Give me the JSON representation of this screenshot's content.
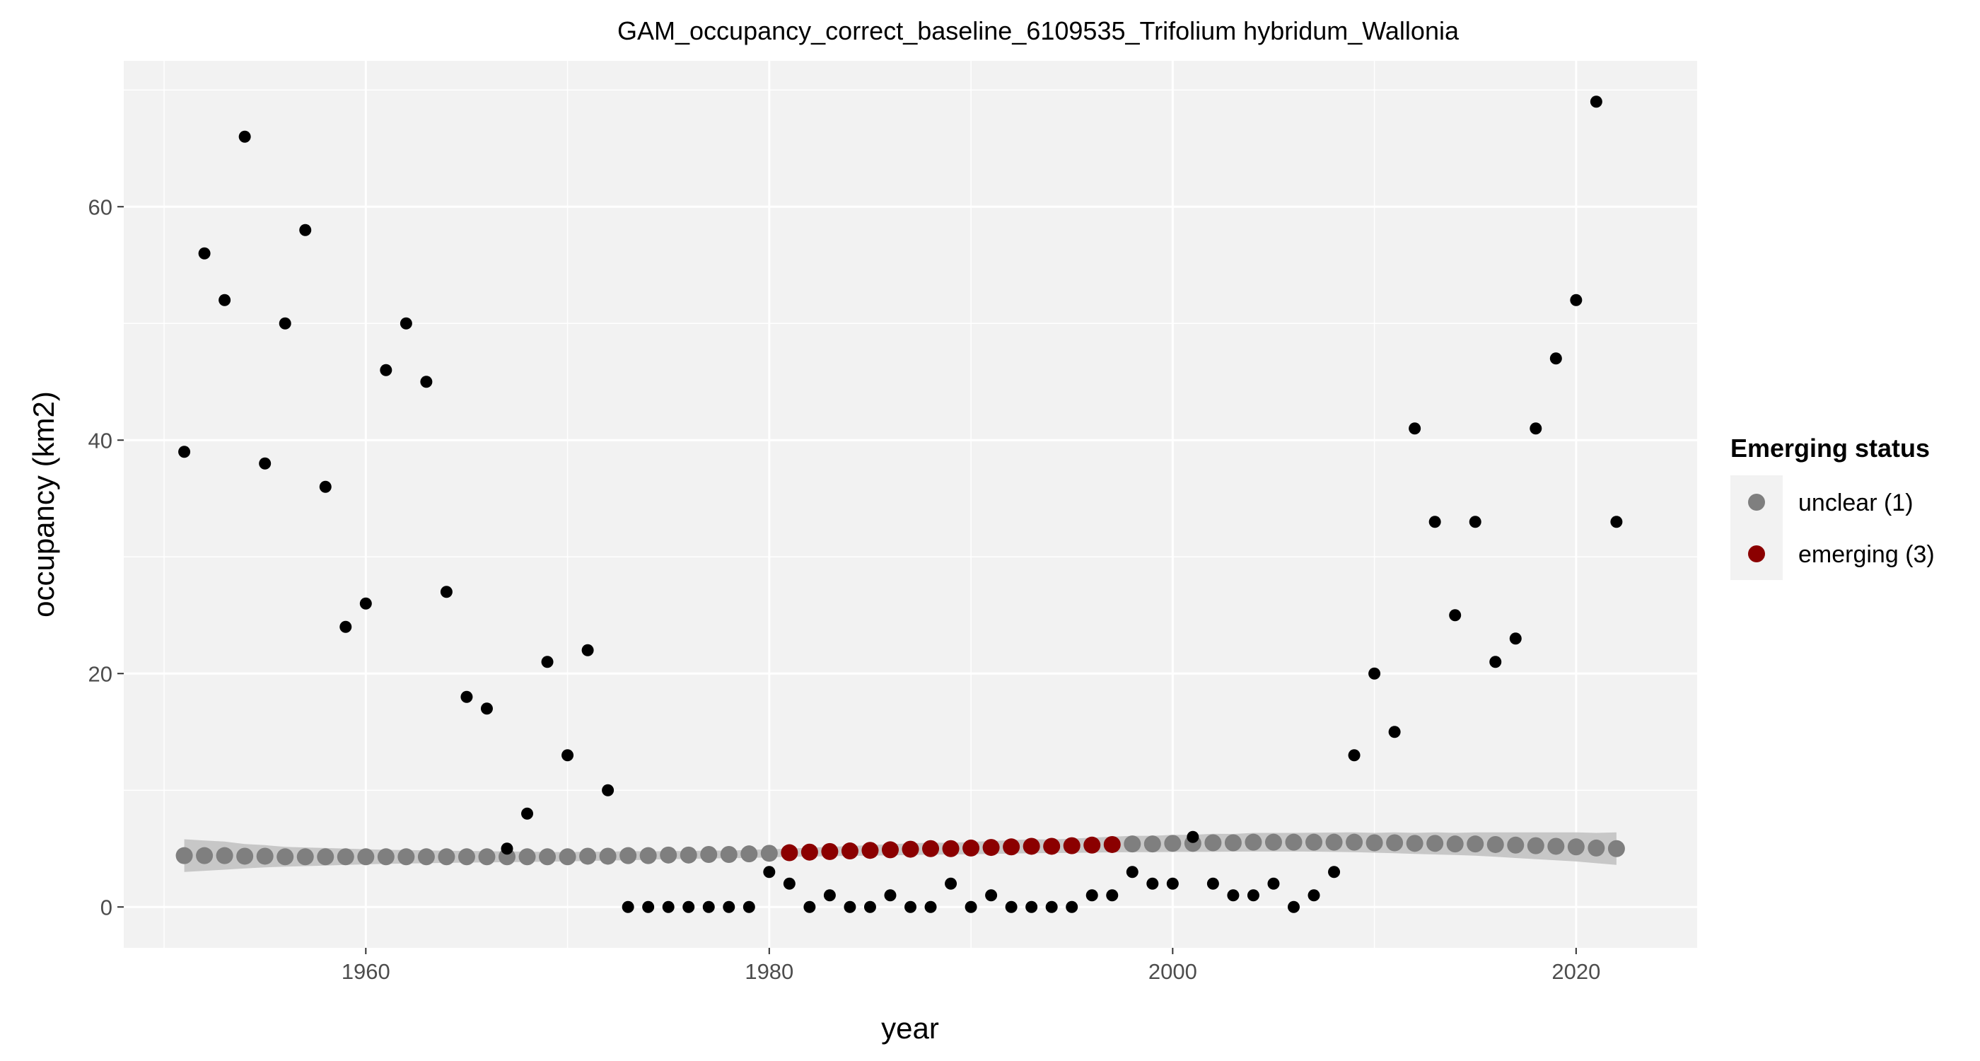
{
  "chart_data": {
    "type": "scatter",
    "title": "GAM_occupancy_correct_baseline_6109535_Trifolium hybridum_Wallonia",
    "xlabel": "year",
    "ylabel": "occupancy (km2)",
    "xlim": [
      1948,
      2026
    ],
    "ylim": [
      -3.5,
      72.5
    ],
    "xticks": [
      1960,
      1980,
      2000,
      2020
    ],
    "yticks": [
      0,
      20,
      40,
      60
    ],
    "grid": true,
    "legend_title": "Emerging status",
    "legend_position": "right",
    "series": [
      {
        "kind": "observed",
        "color": "#000000",
        "x": [
          1951,
          1952,
          1953,
          1954,
          1955,
          1956,
          1957,
          1958,
          1959,
          1960,
          1961,
          1962,
          1963,
          1964,
          1965,
          1966,
          1967,
          1968,
          1969,
          1970,
          1971,
          1972,
          1973,
          1974,
          1975,
          1976,
          1977,
          1978,
          1979,
          1980,
          1981,
          1982,
          1983,
          1984,
          1985,
          1986,
          1987,
          1988,
          1989,
          1990,
          1991,
          1992,
          1993,
          1994,
          1995,
          1996,
          1997,
          1998,
          1999,
          2000,
          2001,
          2002,
          2003,
          2004,
          2005,
          2006,
          2007,
          2008,
          2009,
          2010,
          2011,
          2012,
          2013,
          2014,
          2015,
          2016,
          2017,
          2018,
          2019,
          2020,
          2021,
          2022
        ],
        "y": [
          39,
          56,
          52,
          66,
          38,
          50,
          58,
          36,
          24,
          26,
          46,
          50,
          45,
          27,
          18,
          17,
          5,
          8,
          21,
          13,
          22,
          10,
          0,
          0,
          0,
          0,
          0,
          0,
          0,
          3,
          2,
          0,
          1,
          0,
          0,
          1,
          0,
          0,
          2,
          0,
          1,
          0,
          0,
          0,
          0,
          1,
          1,
          3,
          2,
          2,
          6,
          2,
          1,
          1,
          2,
          0,
          1,
          3,
          13,
          20,
          15,
          41,
          33,
          25,
          33,
          21,
          23,
          41,
          47,
          52,
          69,
          33
        ]
      },
      {
        "kind": "gam_fit",
        "x": [
          1951,
          1952,
          1953,
          1954,
          1955,
          1956,
          1957,
          1958,
          1959,
          1960,
          1961,
          1962,
          1963,
          1964,
          1965,
          1966,
          1967,
          1968,
          1969,
          1970,
          1971,
          1972,
          1973,
          1974,
          1975,
          1976,
          1977,
          1978,
          1979,
          1980,
          1981,
          1982,
          1983,
          1984,
          1985,
          1986,
          1987,
          1988,
          1989,
          1990,
          1991,
          1992,
          1993,
          1994,
          1995,
          1996,
          1997,
          1998,
          1999,
          2000,
          2001,
          2002,
          2003,
          2004,
          2005,
          2006,
          2007,
          2008,
          2009,
          2010,
          2011,
          2012,
          2013,
          2014,
          2015,
          2016,
          2017,
          2018,
          2019,
          2020,
          2021,
          2022
        ],
        "y": [
          4.4,
          4.4,
          4.4,
          4.35,
          4.35,
          4.3,
          4.3,
          4.3,
          4.3,
          4.3,
          4.3,
          4.3,
          4.3,
          4.3,
          4.3,
          4.3,
          4.3,
          4.3,
          4.3,
          4.3,
          4.35,
          4.35,
          4.4,
          4.4,
          4.45,
          4.45,
          4.5,
          4.5,
          4.55,
          4.6,
          4.65,
          4.7,
          4.75,
          4.8,
          4.85,
          4.9,
          4.95,
          5.0,
          5.0,
          5.05,
          5.1,
          5.15,
          5.2,
          5.2,
          5.25,
          5.3,
          5.35,
          5.4,
          5.4,
          5.45,
          5.45,
          5.5,
          5.5,
          5.55,
          5.55,
          5.55,
          5.55,
          5.55,
          5.55,
          5.5,
          5.5,
          5.45,
          5.45,
          5.4,
          5.4,
          5.35,
          5.3,
          5.25,
          5.2,
          5.15,
          5.05,
          5.0
        ],
        "lower": [
          3.0,
          3.1,
          3.2,
          3.3,
          3.4,
          3.45,
          3.5,
          3.55,
          3.6,
          3.65,
          3.7,
          3.72,
          3.75,
          3.78,
          3.8,
          3.82,
          3.84,
          3.86,
          3.88,
          3.9,
          3.95,
          3.98,
          4.0,
          4.05,
          4.1,
          4.12,
          4.15,
          4.18,
          4.2,
          4.25,
          4.3,
          4.32,
          4.35,
          4.38,
          4.4,
          4.42,
          4.45,
          4.48,
          4.5,
          4.52,
          4.55,
          4.58,
          4.6,
          4.62,
          4.64,
          4.66,
          4.68,
          4.7,
          4.7,
          4.72,
          4.72,
          4.73,
          4.74,
          4.75,
          4.75,
          4.75,
          4.74,
          4.72,
          4.7,
          4.65,
          4.6,
          4.55,
          4.5,
          4.45,
          4.4,
          4.3,
          4.2,
          4.1,
          4.0,
          3.9,
          3.75,
          3.6
        ],
        "upper": [
          5.8,
          5.7,
          5.6,
          5.4,
          5.3,
          5.15,
          5.1,
          5.05,
          5.0,
          4.95,
          4.9,
          4.88,
          4.85,
          4.82,
          4.8,
          4.78,
          4.76,
          4.74,
          4.72,
          4.7,
          4.75,
          4.72,
          4.8,
          4.75,
          4.8,
          4.78,
          4.85,
          4.82,
          4.9,
          4.95,
          5.0,
          5.08,
          5.15,
          5.22,
          5.3,
          5.38,
          5.45,
          5.52,
          5.5,
          5.58,
          5.65,
          5.72,
          5.8,
          5.78,
          5.86,
          5.94,
          6.02,
          6.1,
          6.1,
          6.18,
          6.18,
          6.27,
          6.26,
          6.35,
          6.35,
          6.35,
          6.36,
          6.38,
          6.4,
          6.35,
          6.4,
          6.35,
          6.4,
          6.35,
          6.4,
          6.4,
          6.4,
          6.4,
          6.4,
          6.4,
          6.35,
          6.4
        ],
        "status": [
          "unclear",
          "unclear",
          "unclear",
          "unclear",
          "unclear",
          "unclear",
          "unclear",
          "unclear",
          "unclear",
          "unclear",
          "unclear",
          "unclear",
          "unclear",
          "unclear",
          "unclear",
          "unclear",
          "unclear",
          "unclear",
          "unclear",
          "unclear",
          "unclear",
          "unclear",
          "unclear",
          "unclear",
          "unclear",
          "unclear",
          "unclear",
          "unclear",
          "unclear",
          "unclear",
          "emerging",
          "emerging",
          "emerging",
          "emerging",
          "emerging",
          "emerging",
          "emerging",
          "emerging",
          "emerging",
          "emerging",
          "emerging",
          "emerging",
          "emerging",
          "emerging",
          "emerging",
          "emerging",
          "emerging",
          "unclear",
          "unclear",
          "unclear",
          "unclear",
          "unclear",
          "unclear",
          "unclear",
          "unclear",
          "unclear",
          "unclear",
          "unclear",
          "unclear",
          "unclear",
          "unclear",
          "unclear",
          "unclear",
          "unclear",
          "unclear",
          "unclear",
          "unclear",
          "unclear",
          "unclear",
          "unclear",
          "unclear",
          "unclear"
        ]
      }
    ],
    "legend": [
      {
        "key": "unclear",
        "label": "unclear (1)",
        "color": "#7f7f7f"
      },
      {
        "key": "emerging",
        "label": "emerging (3)",
        "color": "#8b0000"
      }
    ],
    "colors": {
      "panel_bg": "#f2f2f2",
      "grid": "#ffffff",
      "ribbon": "#bfbfbf"
    }
  }
}
